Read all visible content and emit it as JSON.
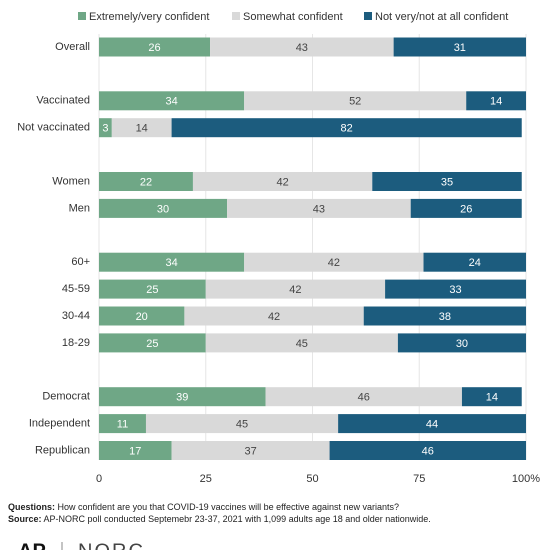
{
  "chart_data": {
    "type": "stacked-bar-horizontal",
    "categories": [
      "Overall",
      null,
      "Vaccinated",
      "Not vaccinated",
      null,
      "Women",
      "Men",
      null,
      "60+",
      "45-59",
      "30-44",
      "18-29",
      null,
      "Democrat",
      "Independent",
      "Republican"
    ],
    "series": [
      {
        "name": "Extremely/very confident",
        "color": "#6fa786",
        "label_color": "#ffffff",
        "values": [
          26,
          null,
          34,
          3,
          null,
          22,
          30,
          null,
          34,
          25,
          20,
          25,
          null,
          39,
          11,
          17
        ]
      },
      {
        "name": "Somewhat confident",
        "color": "#d9d9d9",
        "label_color": "#444444",
        "values": [
          43,
          null,
          52,
          14,
          null,
          42,
          43,
          null,
          42,
          42,
          42,
          45,
          null,
          46,
          45,
          37
        ]
      },
      {
        "name": "Not very/not at all confident",
        "color": "#1c5c7e",
        "label_color": "#ffffff",
        "values": [
          31,
          null,
          14,
          82,
          null,
          35,
          26,
          null,
          24,
          33,
          38,
          30,
          null,
          14,
          44,
          46
        ]
      }
    ],
    "xlim": [
      0,
      100
    ],
    "xticks": [
      0,
      25,
      50,
      75,
      {
        "value": 100,
        "label": "100%"
      }
    ],
    "grid": true
  },
  "footer": {
    "question_label": "Questions:",
    "question": "How confident are you that COVID-19 vaccines will be effective against new variants?",
    "source_label": "Source:",
    "source": "AP-NORC poll conducted Septemebr 23-37, 2021 with 1,099 adults age 18 and older nationwide."
  },
  "logos": [
    "AP",
    "NORC"
  ]
}
